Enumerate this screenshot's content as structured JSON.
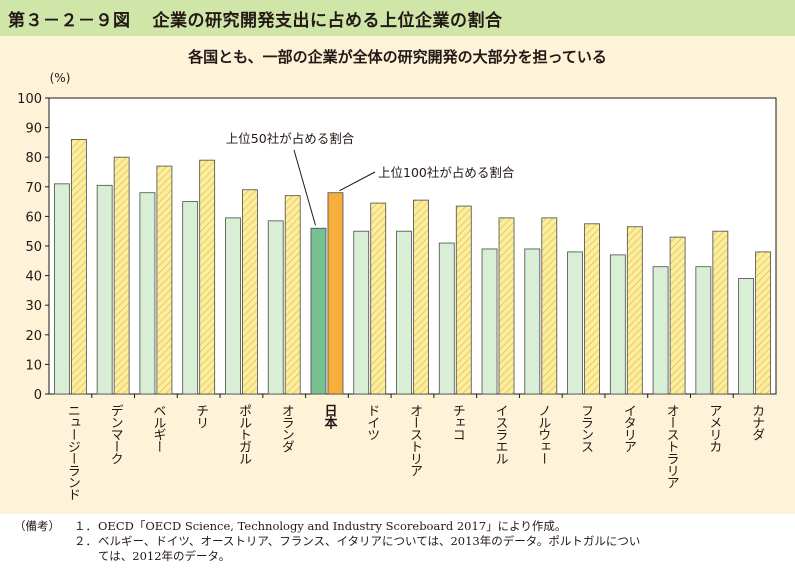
{
  "figure": {
    "number": "第３－２－９図",
    "title": "企業の研究開発支出に占める上位企業の割合"
  },
  "chart_data": {
    "type": "bar",
    "subtitle": "各国とも、一部の企業が全体の研究開発の大部分を担っている",
    "ylabel": "(%)",
    "ylim": [
      0,
      100
    ],
    "yticks": [
      0,
      10,
      20,
      30,
      40,
      50,
      60,
      70,
      80,
      90,
      100
    ],
    "categories": [
      "ニュージーランド",
      "デンマーク",
      "ベルギー",
      "チリ",
      "ポルトガル",
      "オランダ",
      "日本",
      "ドイツ",
      "オーストリア",
      "チェコ",
      "イスラエル",
      "ノルウェー",
      "フランス",
      "イタリア",
      "オーストラリア",
      "アメリカ",
      "カナダ"
    ],
    "highlight_category": "日本",
    "series": [
      {
        "name": "上位50社が占める割合",
        "values": [
          71,
          70.5,
          68,
          65,
          59.5,
          58.5,
          56,
          55,
          55,
          51,
          49,
          49,
          48,
          47,
          43,
          43,
          39
        ],
        "color": "#d8efd6",
        "highlight_color": "#77c090"
      },
      {
        "name": "上位100社が占める割合",
        "values": [
          86,
          80,
          77,
          79,
          69,
          67,
          68,
          64.5,
          65.5,
          63.5,
          59.5,
          59.5,
          57.5,
          56.5,
          53,
          55,
          48
        ],
        "color": "#fbeea0",
        "highlight_color": "#f6ae3c"
      }
    ]
  },
  "notes": {
    "lead": "（備考）",
    "items": [
      {
        "num": "１．",
        "lines": [
          "OECD「OECD Science, Technology and Industry Scoreboard 2017」により作成。"
        ]
      },
      {
        "num": "２．",
        "lines": [
          "ベルギー、ドイツ、オーストリア、フランス、イタリアについては、2013年のデータ。ポルトガルについ",
          "ては、2012年のデータ。"
        ]
      }
    ]
  },
  "colors": {
    "header_band": "#cfe6a8",
    "chart_background": "#fdf3d8",
    "plot_background": "#ffffff",
    "hatch_line": "#e8c34a"
  }
}
